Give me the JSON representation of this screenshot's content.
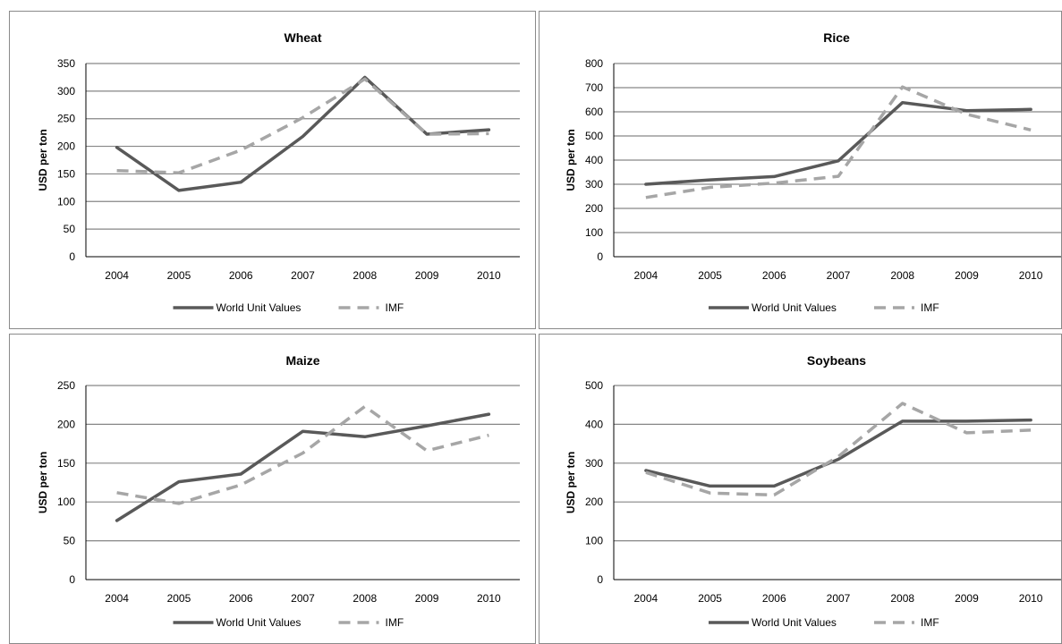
{
  "chart_data": [
    {
      "type": "line",
      "title": "Wheat",
      "ylabel": "USD per ton",
      "xlabel": "",
      "categories": [
        "2004",
        "2005",
        "2006",
        "2007",
        "2008",
        "2009",
        "2010"
      ],
      "ylim": [
        0,
        350
      ],
      "yticks": [
        0,
        50,
        100,
        150,
        200,
        250,
        300,
        350
      ],
      "grid": true,
      "legend": "bottom",
      "series": [
        {
          "name": "World Unit Values",
          "values": [
            198,
            120,
            135,
            218,
            325,
            222,
            230
          ],
          "color": "#595959",
          "dash": "solid"
        },
        {
          "name": "IMF",
          "values": [
            156,
            152,
            193,
            252,
            322,
            222,
            223
          ],
          "color": "#a6a6a6",
          "dash": "dashed"
        }
      ]
    },
    {
      "type": "line",
      "title": "Rice",
      "ylabel": "USD per ton",
      "xlabel": "",
      "categories": [
        "2004",
        "2005",
        "2006",
        "2007",
        "2008",
        "2009",
        "2010"
      ],
      "ylim": [
        0,
        800
      ],
      "yticks": [
        0,
        100,
        200,
        300,
        400,
        500,
        600,
        700,
        800
      ],
      "grid": true,
      "legend": "bottom",
      "series": [
        {
          "name": "World Unit Values",
          "values": [
            300,
            318,
            332,
            397,
            638,
            605,
            610
          ],
          "color": "#595959",
          "dash": "solid"
        },
        {
          "name": "IMF",
          "values": [
            245,
            287,
            305,
            333,
            703,
            590,
            525
          ],
          "color": "#a6a6a6",
          "dash": "dashed"
        }
      ]
    },
    {
      "type": "line",
      "title": "Maize",
      "ylabel": "USD per ton",
      "xlabel": "",
      "categories": [
        "2004",
        "2005",
        "2006",
        "2007",
        "2008",
        "2009",
        "2010"
      ],
      "ylim": [
        0,
        250
      ],
      "yticks": [
        0,
        50,
        100,
        150,
        200,
        250
      ],
      "grid": true,
      "legend": "bottom",
      "series": [
        {
          "name": "World Unit Values",
          "values": [
            76,
            126,
            136,
            191,
            184,
            198,
            213
          ],
          "color": "#595959",
          "dash": "solid"
        },
        {
          "name": "IMF",
          "values": [
            112,
            98,
            122,
            163,
            223,
            166,
            186
          ],
          "color": "#a6a6a6",
          "dash": "dashed"
        }
      ]
    },
    {
      "type": "line",
      "title": "Soybeans",
      "ylabel": "USD per ton",
      "xlabel": "",
      "categories": [
        "2004",
        "2005",
        "2006",
        "2007",
        "2008",
        "2009",
        "2010"
      ],
      "ylim": [
        0,
        500
      ],
      "yticks": [
        0,
        100,
        200,
        300,
        400,
        500
      ],
      "grid": true,
      "legend": "bottom",
      "series": [
        {
          "name": "World Unit Values",
          "values": [
            281,
            241,
            241,
            310,
            408,
            408,
            411
          ],
          "color": "#595959",
          "dash": "solid"
        },
        {
          "name": "IMF",
          "values": [
            276,
            223,
            218,
            317,
            454,
            378,
            385
          ],
          "color": "#a6a6a6",
          "dash": "dashed"
        }
      ]
    }
  ]
}
